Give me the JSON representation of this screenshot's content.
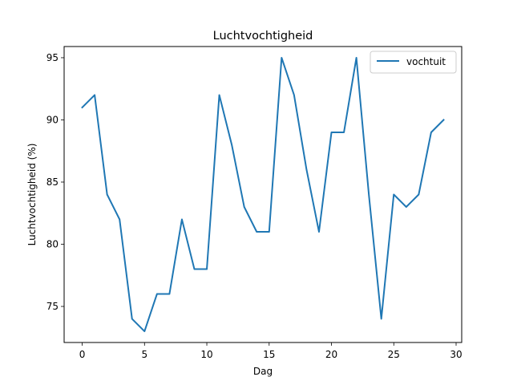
{
  "chart_data": {
    "type": "line",
    "title": "Luchtvochtigheid",
    "xlabel": "Dag",
    "ylabel": "Luchtvochtigheid (%)",
    "xlim": [
      -1.45,
      30.45
    ],
    "ylim": [
      72.1,
      95.9
    ],
    "x_ticks": [
      0,
      5,
      10,
      15,
      20,
      25,
      30
    ],
    "y_ticks": [
      75,
      80,
      85,
      90,
      95
    ],
    "grid": false,
    "legend_position": "top-right",
    "series": [
      {
        "name": "vochtuit",
        "color": "#1f77b4",
        "x": [
          0,
          1,
          2,
          3,
          4,
          5,
          6,
          7,
          8,
          9,
          10,
          11,
          12,
          13,
          14,
          15,
          16,
          17,
          18,
          19,
          20,
          21,
          22,
          23,
          24,
          25,
          26,
          27,
          28,
          29
        ],
        "values": [
          91,
          92,
          84,
          82,
          74,
          73,
          76,
          76,
          82,
          78,
          78,
          92,
          88,
          83,
          81,
          81,
          95,
          92,
          86,
          81,
          89,
          89,
          95,
          84,
          74,
          84,
          83,
          84,
          89,
          90
        ]
      }
    ]
  }
}
